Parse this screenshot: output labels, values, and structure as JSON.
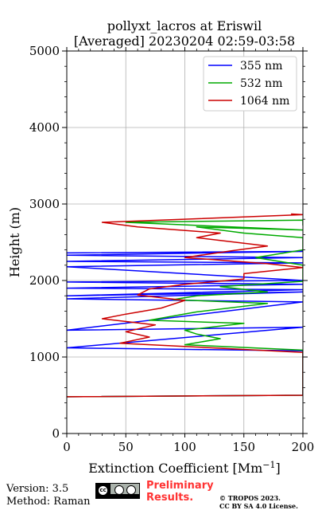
{
  "chart_data": {
    "type": "line",
    "title_line1": "pollyxt_lacros at Eriswil",
    "title_line2": "[Averaged] 20230204 02:59-03:58",
    "xlabel": "Extinction Coefficient [Mm",
    "xlabel_sup": "−1",
    "xlabel_end": "]",
    "ylabel": "Height (m)",
    "xlim": [
      0,
      200
    ],
    "ylim": [
      0,
      5000
    ],
    "xticks": [
      "0",
      "50",
      "100",
      "150",
      "200"
    ],
    "yticks": [
      "0",
      "1000",
      "2000",
      "3000",
      "4000",
      "5000"
    ],
    "xtick_values": [
      0,
      50,
      100,
      150,
      200
    ],
    "ytick_values": [
      0,
      1000,
      2000,
      3000,
      4000,
      5000
    ],
    "grid": true,
    "legend_position": "top-right",
    "series": [
      {
        "name": "355 nm",
        "color": "#0000ff",
        "points": [
          [
            0,
            480
          ],
          [
            200,
            500
          ],
          [
            200,
            1080
          ],
          [
            0,
            1120
          ],
          [
            200,
            1390
          ],
          [
            0,
            1350
          ],
          [
            200,
            1720
          ],
          [
            0,
            1760
          ],
          [
            200,
            1850
          ],
          [
            0,
            1800
          ],
          [
            200,
            1880
          ],
          [
            0,
            1900
          ],
          [
            200,
            1950
          ],
          [
            0,
            1980
          ],
          [
            200,
            2000
          ],
          [
            0,
            2180
          ],
          [
            200,
            2230
          ],
          [
            0,
            2250
          ],
          [
            200,
            2300
          ],
          [
            0,
            2330
          ],
          [
            200,
            2380
          ],
          [
            0,
            2360
          ]
        ]
      },
      {
        "name": "532 nm",
        "color": "#00aa00",
        "points": [
          [
            0,
            480
          ],
          [
            200,
            500
          ],
          [
            200,
            1090
          ],
          [
            100,
            1160
          ],
          [
            130,
            1240
          ],
          [
            110,
            1300
          ],
          [
            100,
            1350
          ],
          [
            150,
            1440
          ],
          [
            70,
            1480
          ],
          [
            110,
            1590
          ],
          [
            170,
            1700
          ],
          [
            90,
            1750
          ],
          [
            110,
            1800
          ],
          [
            170,
            1850
          ],
          [
            130,
            1920
          ],
          [
            200,
            1990
          ],
          [
            200,
            2200
          ],
          [
            160,
            2300
          ],
          [
            200,
            2400
          ],
          [
            200,
            2560
          ],
          [
            150,
            2620
          ],
          [
            110,
            2700
          ],
          [
            200,
            2660
          ],
          [
            50,
            2760
          ],
          [
            200,
            2790
          ],
          [
            200,
            2720
          ]
        ]
      },
      {
        "name": "1064 nm",
        "color": "#cc0000",
        "points": [
          [
            0,
            480
          ],
          [
            200,
            500
          ],
          [
            200,
            1060
          ],
          [
            45,
            1180
          ],
          [
            70,
            1260
          ],
          [
            50,
            1330
          ],
          [
            75,
            1420
          ],
          [
            30,
            1500
          ],
          [
            50,
            1560
          ],
          [
            80,
            1640
          ],
          [
            100,
            1740
          ],
          [
            60,
            1810
          ],
          [
            70,
            1890
          ],
          [
            100,
            1950
          ],
          [
            150,
            2020
          ],
          [
            150,
            2090
          ],
          [
            200,
            2170
          ],
          [
            170,
            2220
          ],
          [
            100,
            2300
          ],
          [
            140,
            2390
          ],
          [
            170,
            2450
          ],
          [
            110,
            2560
          ],
          [
            130,
            2620
          ],
          [
            60,
            2700
          ],
          [
            30,
            2760
          ],
          [
            200,
            2860
          ],
          [
            190,
            2870
          ]
        ]
      }
    ]
  },
  "footer": {
    "version": "Version: 3.5",
    "method": "Method: Raman",
    "prelim_line1": "Preliminary",
    "prelim_line2": "Results.",
    "copyright": "© TROPOS 2023.",
    "license": "CC BY SA 4.0 License."
  }
}
